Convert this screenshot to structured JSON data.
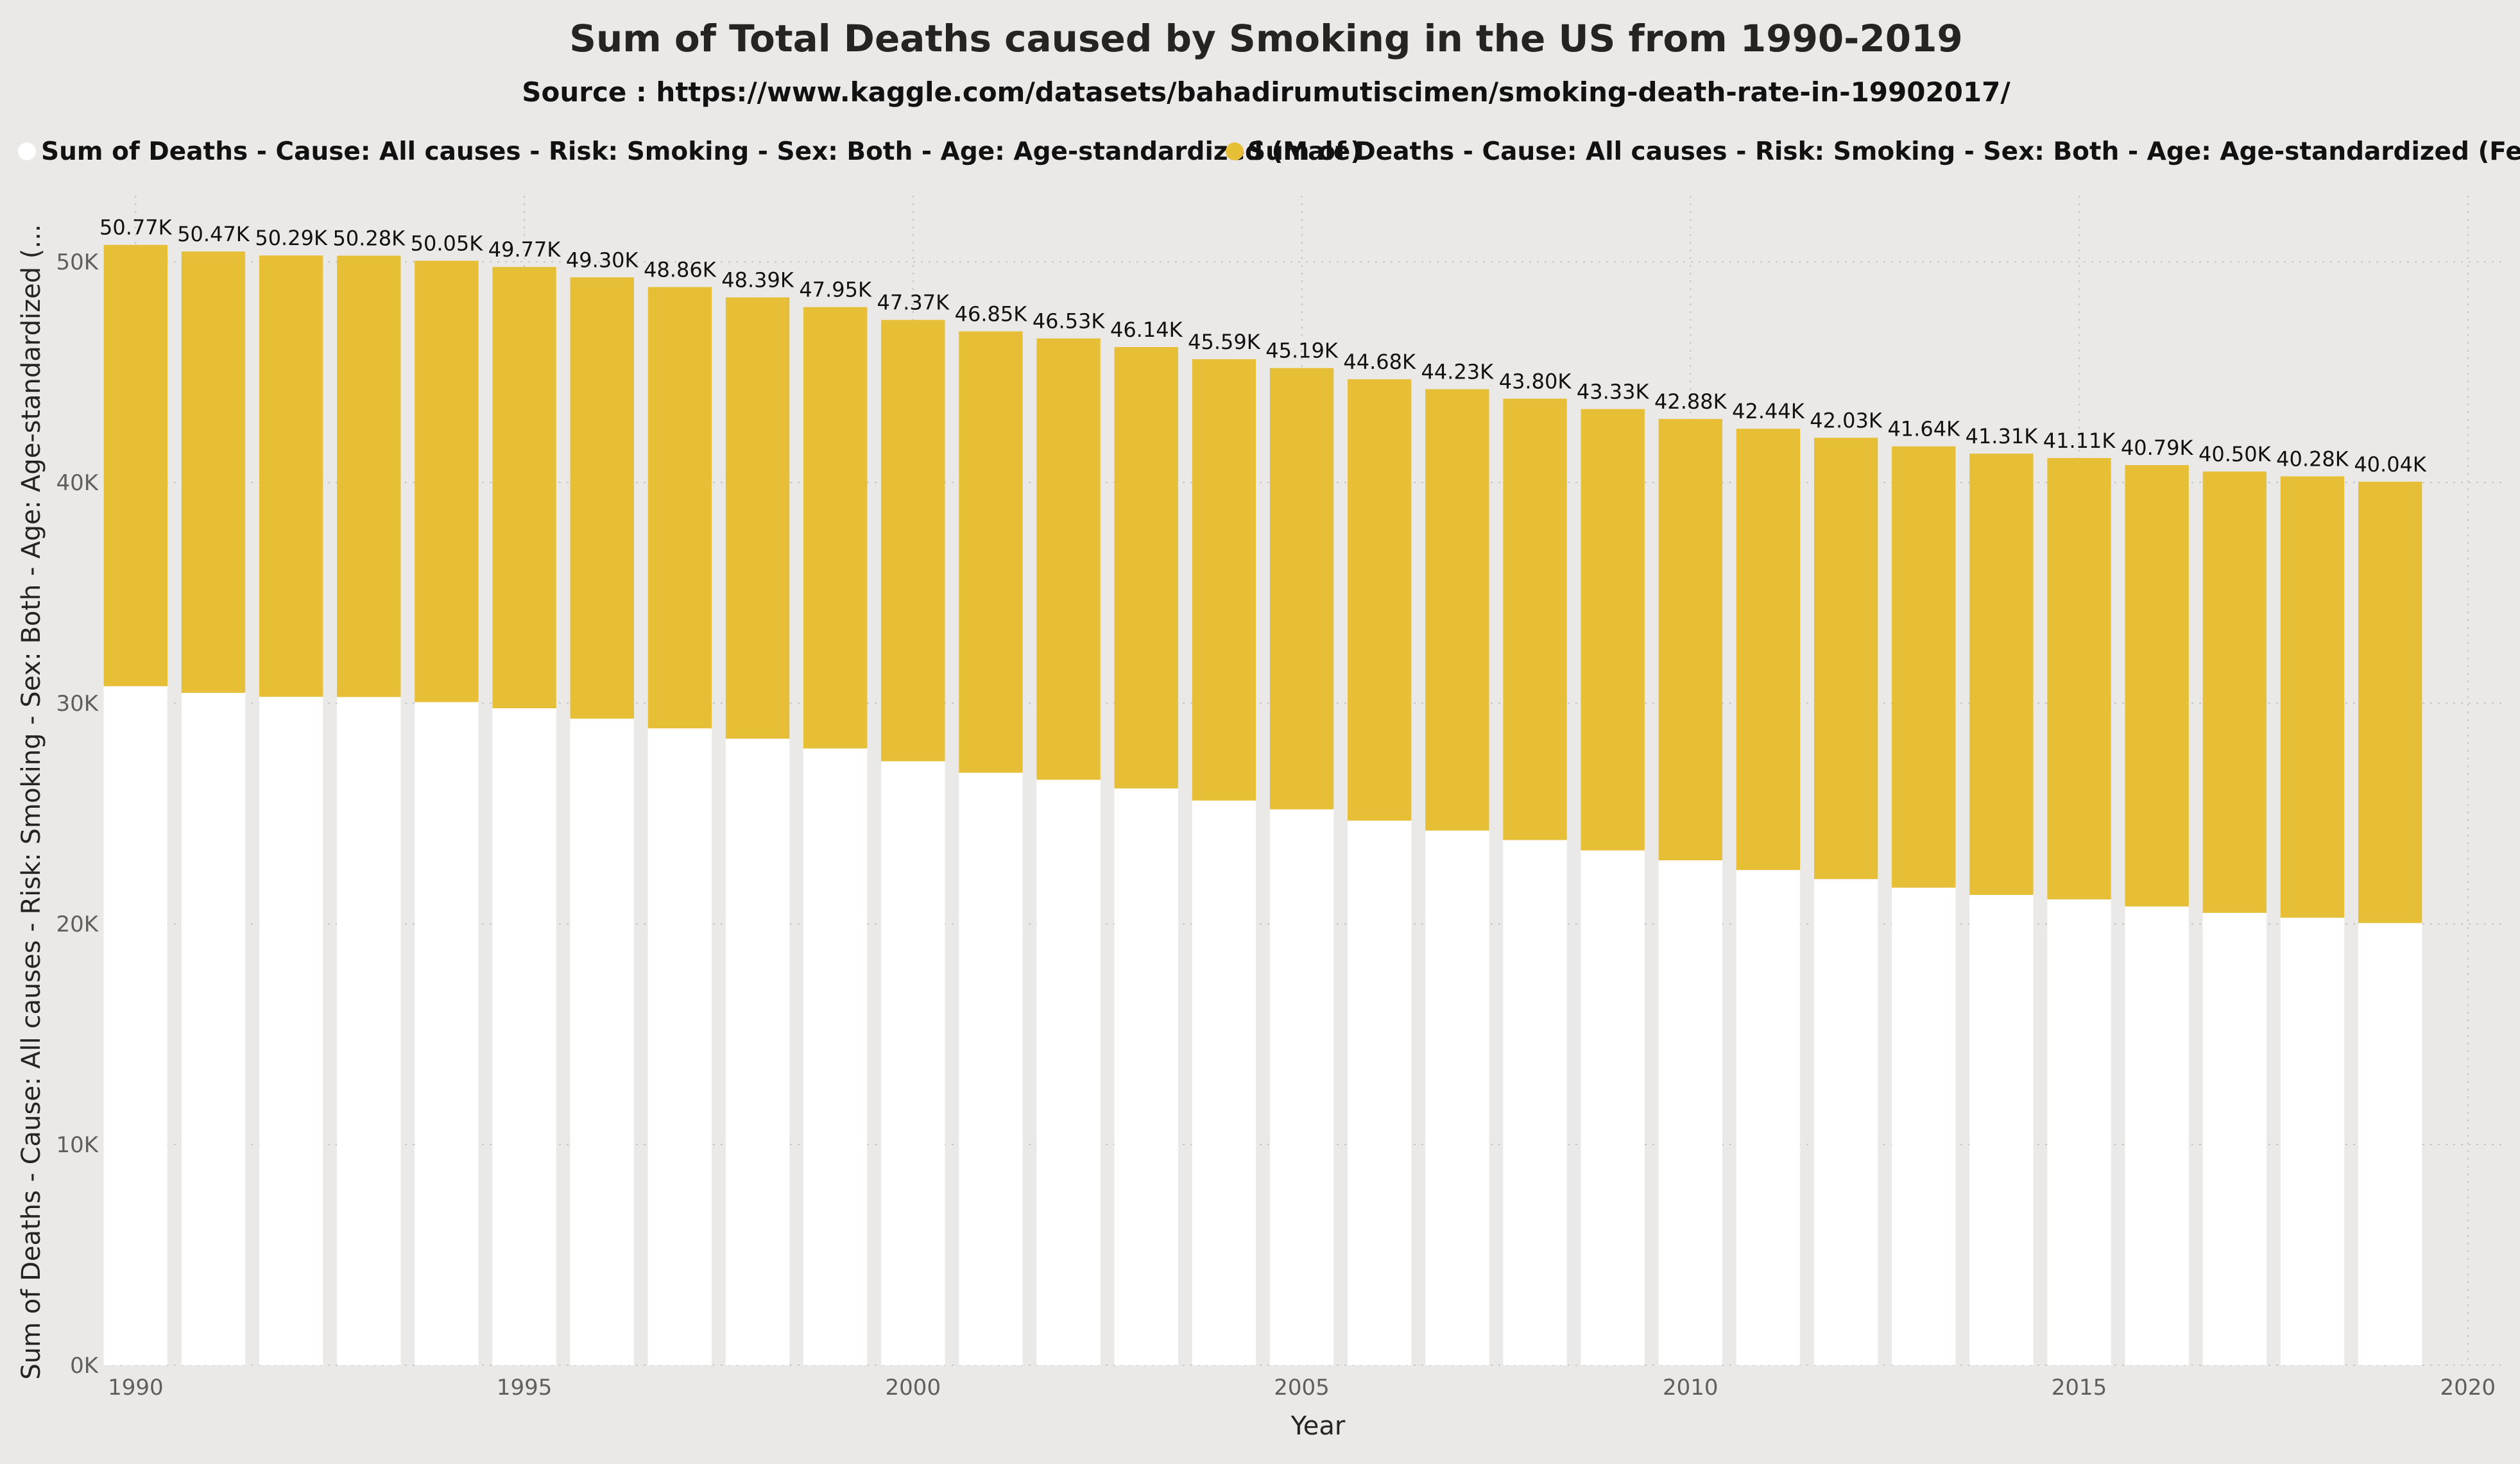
{
  "chart_data": {
    "type": "bar",
    "stacked": true,
    "title": "Sum of Total Deaths caused by Smoking in the US from 1990-2019",
    "subtitle": "Source : https://www.kaggle.com/datasets/bahadirumutiscimen/smoking-death-rate-in-19902017/",
    "xlabel": "Year",
    "ylabel": "Sum of Deaths - Cause: All causes - Risk: Smoking - Sex: Both - Age: Age-standardized (...",
    "x_ticks": [
      "1990",
      "1995",
      "2000",
      "2005",
      "2010",
      "2015",
      "2020"
    ],
    "y_ticks": [
      "0K",
      "10K",
      "20K",
      "30K",
      "40K",
      "50K"
    ],
    "ylim": [
      0,
      53000
    ],
    "xlim": [
      1989.7,
      2020.2
    ],
    "grid": true,
    "legend_position": "top",
    "categories": [
      1990,
      1991,
      1992,
      1993,
      1994,
      1995,
      1996,
      1997,
      1998,
      1999,
      2000,
      2001,
      2002,
      2003,
      2004,
      2005,
      2006,
      2007,
      2008,
      2009,
      2010,
      2011,
      2012,
      2013,
      2014,
      2015,
      2016,
      2017,
      2018,
      2019
    ],
    "series": [
      {
        "name": "Sum of Deaths - Cause: All causes - Risk: Smoking - Sex: Both - Age: Age-standardized (Male)",
        "color": "#ffffff",
        "values": [
          30770,
          30470,
          30290,
          30280,
          30050,
          29770,
          29300,
          28860,
          28390,
          27950,
          27370,
          26850,
          26530,
          26140,
          25590,
          25190,
          24680,
          24230,
          23800,
          23330,
          22880,
          22440,
          22030,
          21640,
          21310,
          21110,
          20790,
          20500,
          20280,
          20040
        ]
      },
      {
        "name": "Sum of Deaths - Cause: All causes - Risk: Smoking - Sex: Both - Age: Age-standardized (Female)",
        "color": "#e6bf36",
        "values": [
          20000,
          20000,
          20000,
          20000,
          20000,
          20000,
          20000,
          20000,
          20000,
          20000,
          20000,
          20000,
          20000,
          20000,
          20000,
          20000,
          20000,
          20000,
          20000,
          20000,
          20000,
          20000,
          20000,
          20000,
          20000,
          20000,
          20000,
          20000,
          20000,
          20000
        ]
      }
    ],
    "total_labels": [
      "50.77K",
      "50.47K",
      "50.29K",
      "50.28K",
      "50.05K",
      "49.77K",
      "49.30K",
      "48.86K",
      "48.39K",
      "47.95K",
      "47.37K",
      "46.85K",
      "46.53K",
      "46.14K",
      "45.59K",
      "45.19K",
      "44.68K",
      "44.23K",
      "43.80K",
      "43.33K",
      "42.88K",
      "42.44K",
      "42.03K",
      "41.64K",
      "41.31K",
      "41.11K",
      "40.79K",
      "40.50K",
      "40.28K",
      "40.04K"
    ]
  }
}
